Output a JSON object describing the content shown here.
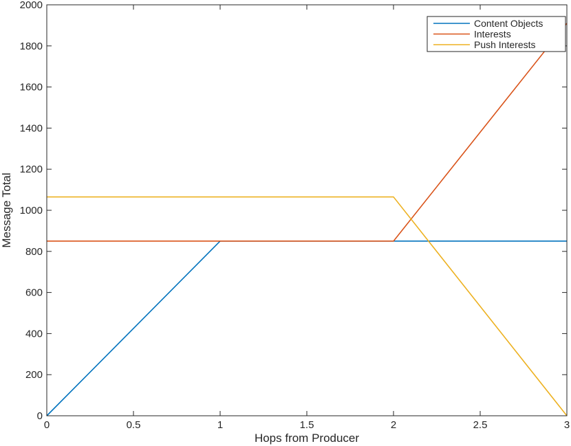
{
  "chart_data": {
    "type": "line",
    "title": "",
    "xlabel": "Hops from Producer",
    "ylabel": "Message Total",
    "xlim": [
      0,
      3
    ],
    "ylim": [
      0,
      2000
    ],
    "xticks": [
      0,
      0.5,
      1,
      1.5,
      2,
      2.5,
      3
    ],
    "yticks": [
      0,
      200,
      400,
      600,
      800,
      1000,
      1200,
      1400,
      1600,
      1800,
      2000
    ],
    "xtick_labels": [
      "0",
      "0.5",
      "1",
      "1.5",
      "2",
      "2.5",
      "3"
    ],
    "ytick_labels": [
      "0",
      "200",
      "400",
      "600",
      "800",
      "1000",
      "1200",
      "1400",
      "1600",
      "1800",
      "2000"
    ],
    "grid": false,
    "legend_position": "top-right",
    "x": [
      0,
      1,
      2,
      3
    ],
    "series": [
      {
        "name": "Content Objects",
        "color": "#0072BD",
        "values": [
          0,
          850,
          850,
          850
        ]
      },
      {
        "name": "Interests",
        "color": "#D95319",
        "values": [
          850,
          850,
          850,
          1910
        ]
      },
      {
        "name": "Push Interests",
        "color": "#EDB120",
        "values": [
          1065,
          1065,
          1065,
          0
        ]
      }
    ]
  }
}
